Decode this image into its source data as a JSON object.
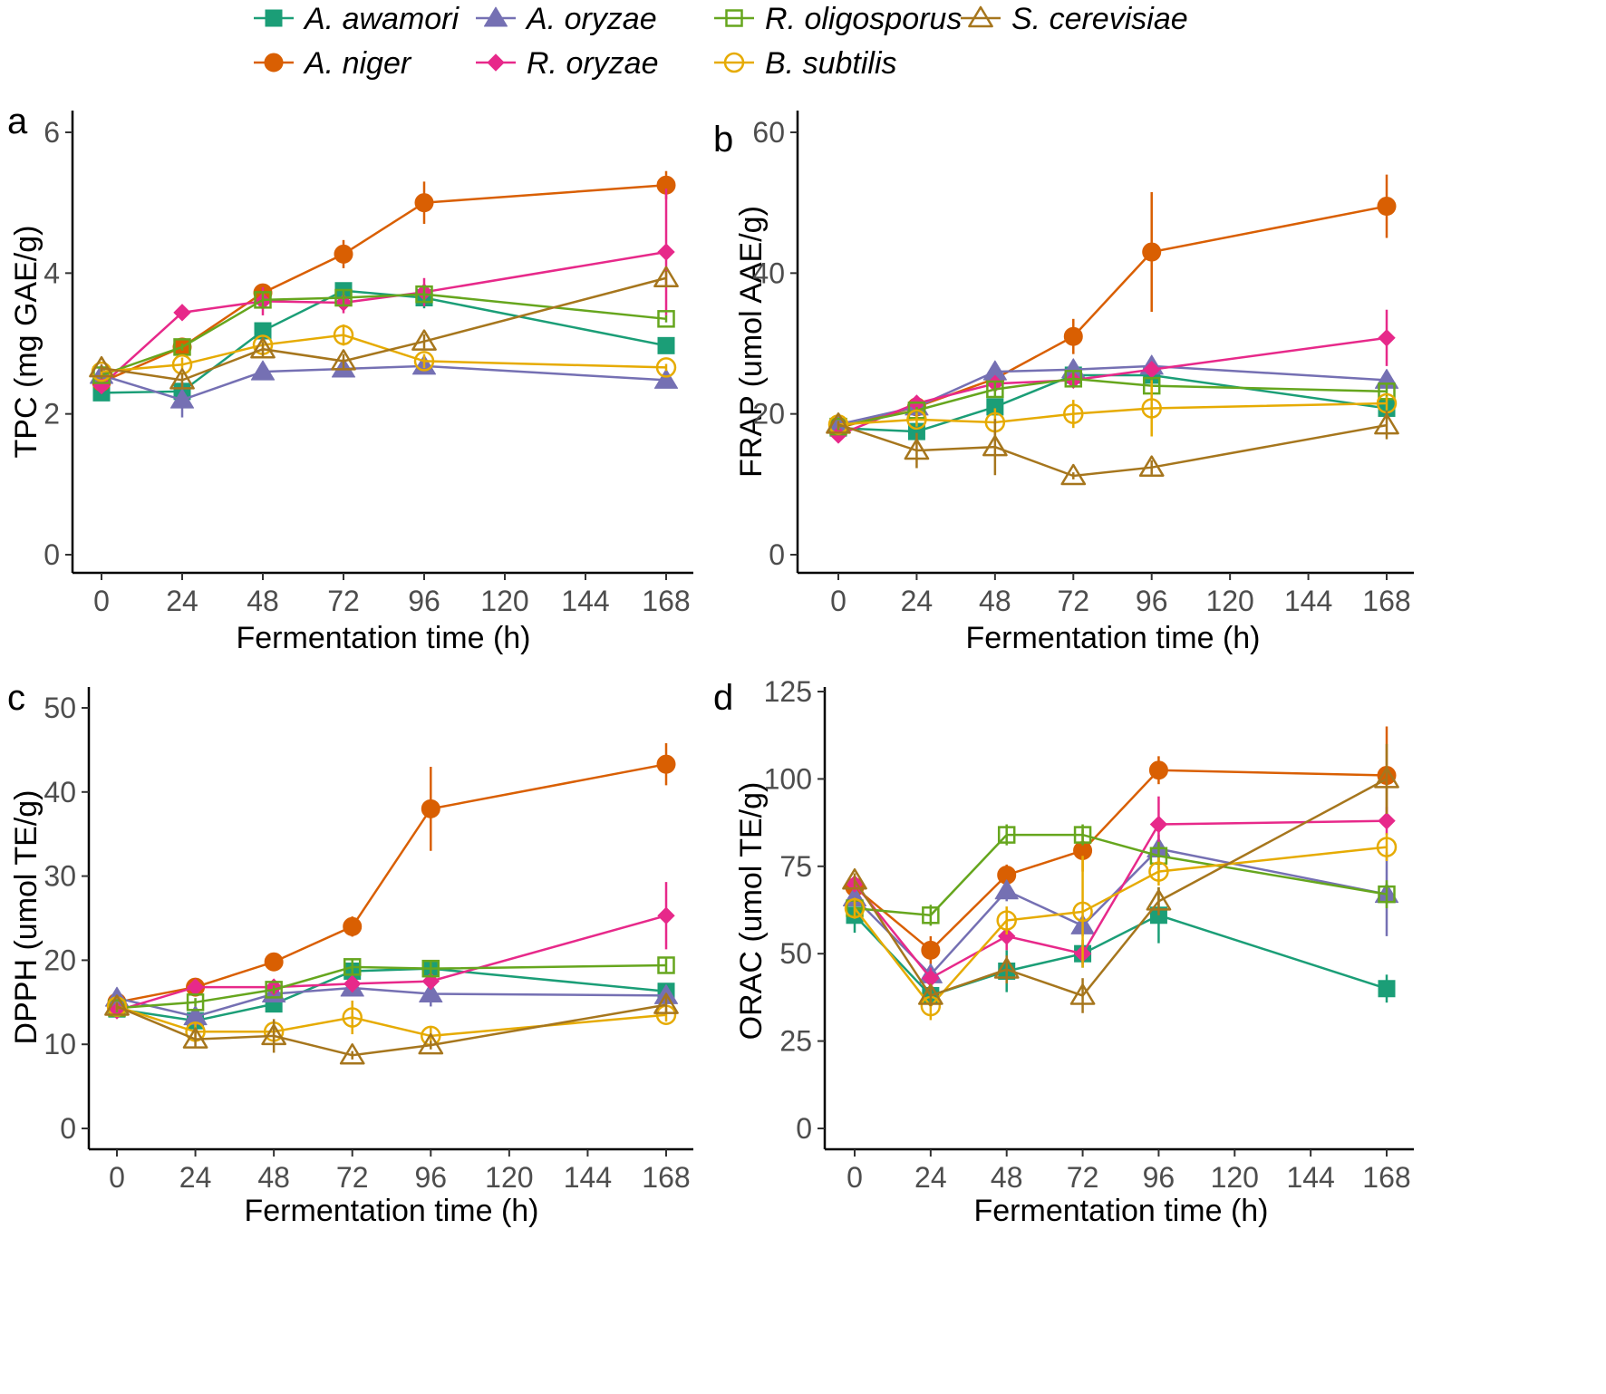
{
  "legend": {
    "items": [
      {
        "label": "A. awamori",
        "color": "#1b9e77",
        "marker": "square-filled"
      },
      {
        "label": "A. niger",
        "color": "#d95f02",
        "marker": "circle-filled"
      },
      {
        "label": "A. oryzae",
        "color": "#7570b3",
        "marker": "triangle-filled"
      },
      {
        "label": "R. oryzae",
        "color": "#e7298a",
        "marker": "diamond-filled"
      },
      {
        "label": "R. oligosporus",
        "color": "#66a61e",
        "marker": "square-open"
      },
      {
        "label": "B. subtilis",
        "color": "#e6ab02",
        "marker": "circle-open"
      },
      {
        "label": "S. cerevisiae",
        "color": "#a6761d",
        "marker": "triangle-open"
      }
    ]
  },
  "chart_data": [
    {
      "type": "line",
      "panel": "a",
      "xlabel": "Fermentation time (h)",
      "ylabel": "TPC (mg GAE/g)",
      "xlim": [
        0,
        168
      ],
      "xticks": [
        0,
        24,
        48,
        72,
        96,
        120,
        144,
        168
      ],
      "ylim": [
        0,
        6
      ],
      "yticks": [
        0,
        2,
        4,
        6
      ],
      "x": [
        0,
        24,
        48,
        72,
        96,
        168
      ],
      "series": [
        {
          "name": "A. awamori",
          "values": [
            2.3,
            2.32,
            3.18,
            3.75,
            3.65,
            2.97
          ],
          "err": [
            0.05,
            0.05,
            0.1,
            0.1,
            0.15,
            0.1
          ]
        },
        {
          "name": "A. niger",
          "values": [
            2.45,
            2.95,
            3.72,
            4.27,
            5.0,
            5.25
          ],
          "err": [
            0.05,
            0.05,
            0.1,
            0.2,
            0.3,
            0.2
          ]
        },
        {
          "name": "A. oryzae",
          "values": [
            2.55,
            2.2,
            2.6,
            2.64,
            2.68,
            2.48
          ],
          "err": [
            0.05,
            0.25,
            0.1,
            0.1,
            0.1,
            0.05
          ]
        },
        {
          "name": "R. oryzae",
          "values": [
            2.4,
            3.44,
            3.6,
            3.58,
            3.73,
            4.3
          ],
          "err": [
            0.05,
            0.05,
            0.2,
            0.15,
            0.2,
            0.9
          ]
        },
        {
          "name": "R. oligosporus",
          "values": [
            2.55,
            2.95,
            3.62,
            3.65,
            3.7,
            3.35
          ],
          "err": [
            0.05,
            0.05,
            0.1,
            0.1,
            0.1,
            0.05
          ]
        },
        {
          "name": "B. subtilis",
          "values": [
            2.6,
            2.7,
            2.98,
            3.12,
            2.75,
            2.66
          ],
          "err": [
            0.05,
            0.1,
            0.1,
            0.15,
            0.1,
            0.05
          ]
        },
        {
          "name": "S. cerevisiae",
          "values": [
            2.65,
            2.48,
            2.92,
            2.75,
            3.03,
            3.93
          ],
          "err": [
            0.05,
            0.1,
            0.1,
            0.1,
            0.1,
            0.1
          ]
        }
      ]
    },
    {
      "type": "line",
      "panel": "b",
      "xlabel": "Fermentation time (h)",
      "ylabel": "FRAP (umol AAE/g)",
      "xlim": [
        0,
        168
      ],
      "xticks": [
        0,
        24,
        48,
        72,
        96,
        120,
        144,
        168
      ],
      "ylim": [
        0,
        60
      ],
      "yticks": [
        0,
        20,
        40,
        60
      ],
      "x": [
        0,
        24,
        48,
        72,
        96,
        168
      ],
      "series": [
        {
          "name": "A. awamori",
          "values": [
            18.0,
            17.5,
            21.0,
            25.5,
            25.5,
            20.8
          ],
          "err": [
            0.5,
            0.5,
            0.5,
            1.0,
            1.0,
            0.5
          ]
        },
        {
          "name": "A. niger",
          "values": [
            18.0,
            21.0,
            25.0,
            31.0,
            43.0,
            49.5
          ],
          "err": [
            0.5,
            0.5,
            1.0,
            2.5,
            8.5,
            4.5
          ]
        },
        {
          "name": "A. oryzae",
          "values": [
            18.5,
            21.0,
            26.0,
            26.3,
            26.8,
            24.8
          ],
          "err": [
            0.5,
            0.5,
            0.5,
            0.5,
            0.5,
            0.5
          ]
        },
        {
          "name": "R. oryzae",
          "values": [
            17.0,
            21.5,
            24.3,
            24.8,
            26.3,
            30.8
          ],
          "err": [
            0.5,
            0.5,
            0.5,
            1.0,
            1.0,
            4.0
          ]
        },
        {
          "name": "R. oligosporus",
          "values": [
            18.2,
            20.5,
            23.5,
            25.0,
            24.0,
            23.2
          ],
          "err": [
            0.5,
            0.5,
            1.0,
            1.0,
            1.0,
            1.0
          ]
        },
        {
          "name": "B. subtilis",
          "values": [
            18.5,
            19.2,
            18.8,
            20.0,
            20.8,
            21.5
          ],
          "err": [
            0.5,
            1.0,
            2.0,
            2.0,
            4.0,
            1.0
          ]
        },
        {
          "name": "S. cerevisiae",
          "values": [
            18.5,
            14.8,
            15.3,
            11.2,
            12.4,
            18.4
          ],
          "err": [
            0.5,
            2.5,
            4.0,
            0.5,
            1.0,
            2.0
          ]
        }
      ]
    },
    {
      "type": "line",
      "panel": "c",
      "xlabel": "Fermentation time (h)",
      "ylabel": "DPPH (umol TE/g)",
      "xlim": [
        0,
        168
      ],
      "xticks": [
        0,
        24,
        48,
        72,
        96,
        120,
        144,
        168
      ],
      "ylim": [
        0,
        50
      ],
      "yticks": [
        0,
        10,
        20,
        30,
        40,
        50
      ],
      "x": [
        0,
        24,
        48,
        72,
        96,
        168
      ],
      "series": [
        {
          "name": "A. awamori",
          "values": [
            14.2,
            12.8,
            14.8,
            18.7,
            19.0,
            16.3
          ],
          "err": [
            0.5,
            0.5,
            0.5,
            0.8,
            0.8,
            0.5
          ]
        },
        {
          "name": "A. niger",
          "values": [
            15.0,
            16.8,
            19.8,
            24.0,
            38.0,
            43.3
          ],
          "err": [
            0.5,
            0.5,
            0.5,
            1.2,
            5.0,
            2.5
          ]
        },
        {
          "name": "A. oryzae",
          "values": [
            15.5,
            13.3,
            16.0,
            16.7,
            16.0,
            15.8
          ],
          "err": [
            0.5,
            0.8,
            0.8,
            0.8,
            1.5,
            1.0
          ]
        },
        {
          "name": "R. oryzae",
          "values": [
            14.0,
            16.8,
            16.8,
            17.2,
            17.5,
            25.3
          ],
          "err": [
            0.5,
            0.5,
            0.5,
            1.0,
            1.0,
            4.0
          ]
        },
        {
          "name": "R. oligosporus",
          "values": [
            14.3,
            15.0,
            16.5,
            19.2,
            19.0,
            19.4
          ],
          "err": [
            0.5,
            0.5,
            0.5,
            0.8,
            0.8,
            0.8
          ]
        },
        {
          "name": "B. subtilis",
          "values": [
            14.5,
            11.5,
            11.5,
            13.2,
            11.0,
            13.5
          ],
          "err": [
            0.5,
            1.0,
            1.0,
            2.0,
            1.0,
            0.8
          ]
        },
        {
          "name": "S. cerevisiae",
          "values": [
            14.5,
            10.6,
            11.0,
            8.7,
            9.9,
            14.7
          ],
          "err": [
            0.5,
            1.0,
            2.0,
            0.5,
            0.5,
            1.0
          ]
        }
      ]
    },
    {
      "type": "line",
      "panel": "d",
      "xlabel": "Fermentation time (h)",
      "ylabel": "ORAC (umol TE/g)",
      "xlim": [
        0,
        168
      ],
      "xticks": [
        0,
        24,
        48,
        72,
        96,
        120,
        144,
        168
      ],
      "ylim": [
        0,
        125
      ],
      "yticks": [
        0,
        25,
        50,
        75,
        100,
        125
      ],
      "x": [
        0,
        24,
        48,
        72,
        96,
        168
      ],
      "series": [
        {
          "name": "A. awamori",
          "values": [
            61,
            38,
            45,
            50,
            61,
            40
          ],
          "err": [
            5,
            3,
            6,
            4,
            8,
            4
          ]
        },
        {
          "name": "A. niger",
          "values": [
            69,
            51,
            72.5,
            79.5,
            102.5,
            101
          ],
          "err": [
            2,
            4,
            3,
            6,
            4,
            14
          ]
        },
        {
          "name": "A. oryzae",
          "values": [
            66,
            44,
            68,
            58,
            80,
            67
          ],
          "err": [
            3,
            3,
            3,
            3,
            4,
            12
          ]
        },
        {
          "name": "R. oryzae",
          "values": [
            70,
            43,
            55,
            50,
            87,
            88
          ],
          "err": [
            2,
            3,
            4,
            3,
            8,
            4
          ]
        },
        {
          "name": "R. oligosporus",
          "values": [
            63,
            61,
            84,
            84,
            78,
            67
          ],
          "err": [
            3,
            3,
            3,
            3,
            4,
            4
          ]
        },
        {
          "name": "B. subtilis",
          "values": [
            63,
            35,
            59.5,
            62,
            73.5,
            80.5
          ],
          "err": [
            3,
            4,
            4,
            16,
            4,
            4
          ]
        },
        {
          "name": "S. cerevisiae",
          "values": [
            71,
            38,
            45.5,
            38,
            65,
            100
          ],
          "err": [
            2,
            3,
            4,
            5,
            4,
            10
          ]
        }
      ]
    }
  ]
}
